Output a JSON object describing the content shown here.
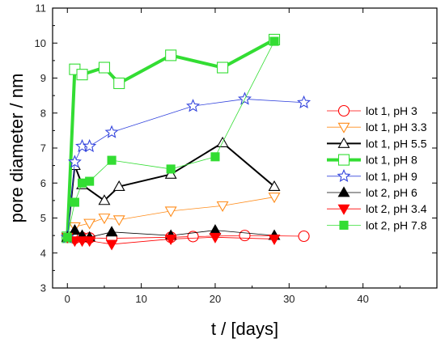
{
  "chart_data": {
    "type": "line",
    "xlabel": "t / [days]",
    "ylabel": "pore diameter / nm",
    "xlim": [
      -2,
      50
    ],
    "ylim": [
      3,
      11
    ],
    "x_ticks": [
      0,
      10,
      20,
      30,
      40
    ],
    "y_ticks": [
      3,
      4,
      5,
      6,
      7,
      8,
      9,
      10,
      11
    ],
    "legend_position": "right",
    "series": [
      {
        "name": "lot 1, pH 3",
        "color": "#ff0000",
        "marker": "circle-open",
        "line_width": 0.8,
        "x": [
          0,
          1,
          2,
          3,
          6,
          14,
          17,
          24,
          32
        ],
        "y": [
          4.45,
          4.42,
          4.44,
          4.43,
          4.42,
          4.45,
          4.47,
          4.5,
          4.48
        ]
      },
      {
        "name": "lot 1, pH 3.3",
        "color": "#ff8c1a",
        "marker": "triangle-down-open",
        "line_width": 0.8,
        "x": [
          0,
          1,
          3,
          5,
          7,
          14,
          21,
          28
        ],
        "y": [
          4.45,
          4.75,
          4.85,
          5.0,
          4.95,
          5.2,
          5.35,
          5.6
        ]
      },
      {
        "name": "lot 1, pH 5.5",
        "color": "#000000",
        "marker": "triangle-up-open",
        "line_width": 2,
        "x": [
          0,
          1,
          2,
          5,
          7,
          14,
          21,
          28
        ],
        "y": [
          4.45,
          6.5,
          5.95,
          5.5,
          5.9,
          6.25,
          7.15,
          5.9
        ]
      },
      {
        "name": "lot 1, pH 8",
        "color": "#33dd33",
        "marker": "square-open",
        "line_width": 4,
        "x": [
          0,
          1,
          2,
          5,
          7,
          14,
          21,
          28
        ],
        "y": [
          4.45,
          9.25,
          9.1,
          9.3,
          8.85,
          9.65,
          9.3,
          10.1
        ]
      },
      {
        "name": "lot 1, pH 9",
        "color": "#3344dd",
        "marker": "star-open",
        "line_width": 0.8,
        "x": [
          0,
          1,
          2,
          3,
          6,
          17,
          24,
          32
        ],
        "y": [
          4.45,
          6.6,
          7.05,
          7.05,
          7.45,
          8.2,
          8.4,
          8.3
        ]
      },
      {
        "name": "lot 2, pH 6",
        "color": "#000000",
        "marker": "triangle-up-filled",
        "line_width": 0.8,
        "x": [
          0,
          1,
          2,
          3,
          6,
          14,
          20,
          28
        ],
        "y": [
          4.45,
          4.65,
          4.5,
          4.45,
          4.6,
          4.5,
          4.65,
          4.5
        ]
      },
      {
        "name": "lot 2, pH 3.4",
        "color": "#ff0000",
        "marker": "triangle-down-filled",
        "line_width": 0.8,
        "x": [
          0,
          1,
          2,
          3,
          6,
          14,
          20,
          28
        ],
        "y": [
          4.45,
          4.35,
          4.35,
          4.35,
          4.25,
          4.4,
          4.45,
          4.4
        ]
      },
      {
        "name": "lot 2, pH 7.8",
        "color": "#33dd33",
        "marker": "square-filled",
        "line_width": 0.8,
        "x": [
          0,
          1,
          2,
          3,
          6,
          14,
          20,
          28
        ],
        "y": [
          4.45,
          5.45,
          6.0,
          6.05,
          6.65,
          6.4,
          6.75,
          10.05
        ]
      }
    ]
  }
}
